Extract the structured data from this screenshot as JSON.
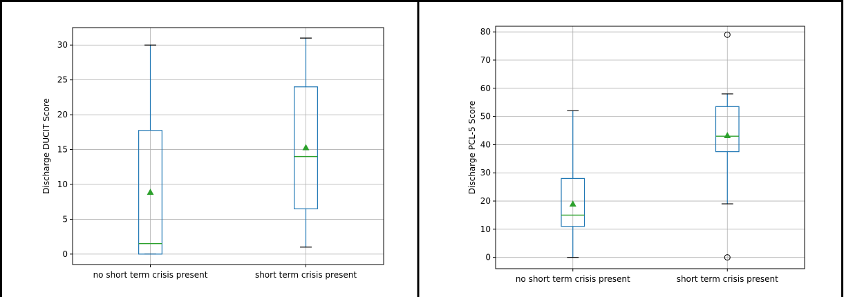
{
  "chart_data": [
    {
      "type": "box",
      "title": "",
      "xlabel": "",
      "ylabel": "Discharge DUCIT Score",
      "ylim": [
        -1.5,
        32.5
      ],
      "yticks": [
        0,
        5,
        10,
        15,
        20,
        25,
        30
      ],
      "grid": true,
      "categories": [
        "no short term crisis present",
        "short term crisis present"
      ],
      "boxes": [
        {
          "category": "no short term crisis present",
          "whisker_low": 0,
          "q1": 0,
          "median": 1.5,
          "q3": 17.75,
          "whisker_high": 30,
          "mean": 8.9,
          "outliers": []
        },
        {
          "category": "short term crisis present",
          "whisker_low": 1,
          "q1": 6.5,
          "median": 14,
          "q3": 24,
          "whisker_high": 31,
          "mean": 15.3,
          "outliers": []
        }
      ]
    },
    {
      "type": "box",
      "title": "",
      "xlabel": "",
      "ylabel": "Discharge PCL-5 Score",
      "ylim": [
        -4,
        82
      ],
      "yticks": [
        0,
        10,
        20,
        30,
        40,
        50,
        60,
        70,
        80
      ],
      "grid": true,
      "categories": [
        "no short term crisis present",
        "short term crisis present"
      ],
      "boxes": [
        {
          "category": "no short term crisis present",
          "whisker_low": 0,
          "q1": 11,
          "median": 15,
          "q3": 28,
          "whisker_high": 52,
          "mean": 19,
          "outliers": []
        },
        {
          "category": "short term crisis present",
          "whisker_low": 19,
          "q1": 37.5,
          "median": 43,
          "q3": 53.5,
          "whisker_high": 58,
          "mean": 43.3,
          "outliers": [
            0,
            79
          ]
        }
      ]
    }
  ],
  "style": {
    "box_color": "#1f77b4",
    "median_color": "#2ca02c",
    "mean_color": "#2ca02c",
    "grid_color": "#b0b0b0",
    "whisker_cap_color": "#000000",
    "frame_color": "#000000"
  }
}
